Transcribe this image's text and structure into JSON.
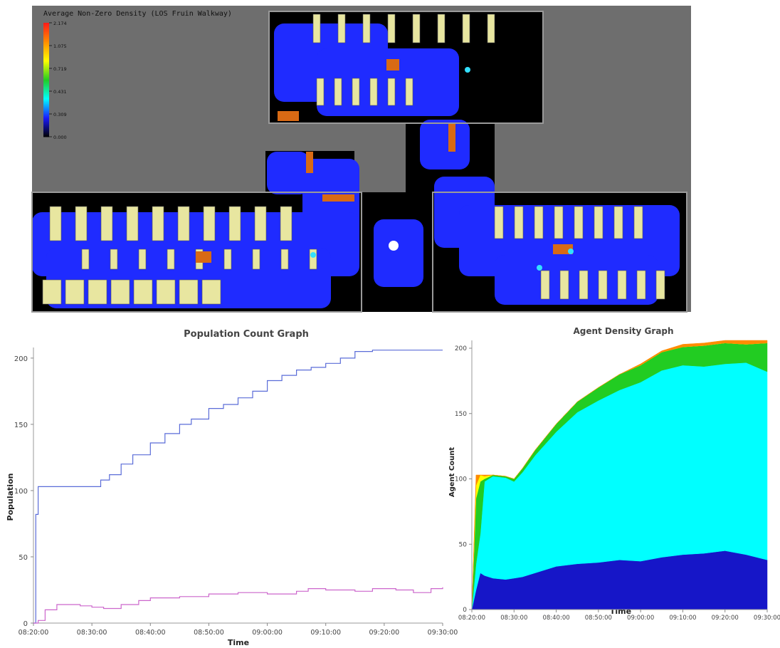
{
  "floorplan": {
    "legend_title": "Average Non-Zero Density (LOS Fruin Walkway)",
    "legend_values": [
      "2.174",
      "1.075",
      "0.719",
      "0.431",
      "0.309",
      "0.000"
    ],
    "legend_colors": [
      "#ff1a1a",
      "#ff8c00",
      "#ffff00",
      "#22cc22",
      "#00ffff",
      "#1a1aff",
      "#000000"
    ],
    "colors": {
      "background": "#6e6e6e",
      "floor": "#000000",
      "walk": "#1f2bff",
      "furniture": "#e8e6a0",
      "orange": "#d86a14",
      "cyan": "#33e0ff",
      "wall": "#9a9a9a"
    }
  },
  "chart_data": [
    {
      "type": "line",
      "title": "Population Count Graph",
      "xlabel": "Time",
      "ylabel": "Population",
      "x_ticks": [
        "08:20:00",
        "08:30:00",
        "08:40:00",
        "08:50:00",
        "09:00:00",
        "09:10:00",
        "09:20:00",
        "09:30:00"
      ],
      "x_range_minutes": [
        0,
        70
      ],
      "ylim": [
        0,
        208
      ],
      "y_ticks": [
        0,
        50,
        100,
        150,
        200
      ],
      "grid": false,
      "series": [
        {
          "color": "#5a6cd8",
          "x": [
            0,
            0.4,
            0.8,
            1.5,
            5,
            10.5,
            11.5,
            13,
            15,
            17,
            20,
            22.5,
            25,
            27,
            30,
            32.5,
            35,
            37.5,
            40,
            42.5,
            45,
            47.5,
            50,
            52.5,
            55,
            58,
            60,
            62,
            65,
            70
          ],
          "y": [
            0,
            82,
            103,
            103,
            103,
            103,
            108,
            112,
            120,
            127,
            136,
            143,
            150,
            154,
            162,
            165,
            170,
            175,
            183,
            187,
            191,
            193,
            196,
            200,
            205,
            206,
            206,
            206,
            206,
            206
          ]
        },
        {
          "color": "#cc66cc",
          "x": [
            0,
            0.8,
            2,
            4,
            6,
            8,
            10,
            12,
            15,
            18,
            20,
            25,
            30,
            35,
            40,
            45,
            47,
            50,
            55,
            58,
            62,
            65,
            68,
            70
          ],
          "y": [
            0,
            2,
            10,
            14,
            14,
            13,
            12,
            11,
            14,
            17,
            19,
            20,
            22,
            23,
            22,
            24,
            26,
            25,
            24,
            26,
            25,
            23,
            26,
            27
          ]
        }
      ]
    },
    {
      "type": "area",
      "title": "Agent Density Graph",
      "xlabel": "Time",
      "ylabel": "Agent Count",
      "x_ticks": [
        "08:20:00",
        "08:30:00",
        "08:40:00",
        "08:50:00",
        "09:00:00",
        "09:10:00",
        "09:20:00",
        "09:30:00"
      ],
      "x_range_minutes": [
        0,
        70
      ],
      "ylim": [
        0,
        206
      ],
      "y_ticks": [
        0,
        50,
        100,
        150,
        200
      ],
      "x": [
        0,
        1,
        2,
        3,
        5,
        8,
        10,
        12,
        15,
        20,
        25,
        30,
        35,
        40,
        45,
        50,
        55,
        60,
        65,
        70
      ],
      "series": [
        {
          "color": "#1616c8",
          "values": [
            0,
            15,
            28,
            26,
            24,
            23,
            24,
            25,
            28,
            33,
            35,
            36,
            38,
            37,
            40,
            42,
            43,
            45,
            42,
            38
          ]
        },
        {
          "color": "#00ffff",
          "values": [
            0,
            20,
            30,
            72,
            78,
            78,
            74,
            80,
            90,
            103,
            116,
            124,
            130,
            137,
            143,
            145,
            143,
            143,
            147,
            144
          ]
        },
        {
          "color": "#22cc22",
          "values": [
            0,
            50,
            40,
            2,
            1,
            1,
            2,
            3,
            4,
            6,
            8,
            10,
            12,
            13,
            14,
            14,
            16,
            16,
            14,
            22
          ]
        },
        {
          "color": "#ffff00",
          "values": [
            0,
            10,
            5,
            2,
            0,
            0,
            0,
            0,
            0,
            0,
            0,
            0,
            0,
            0,
            0,
            0,
            0,
            0,
            0,
            0
          ]
        },
        {
          "color": "#ff8c00",
          "values": [
            0,
            8,
            0,
            1,
            0,
            0,
            0,
            0,
            0,
            0,
            0,
            0,
            0,
            1,
            1,
            2,
            2,
            2,
            3,
            2
          ]
        }
      ]
    }
  ]
}
